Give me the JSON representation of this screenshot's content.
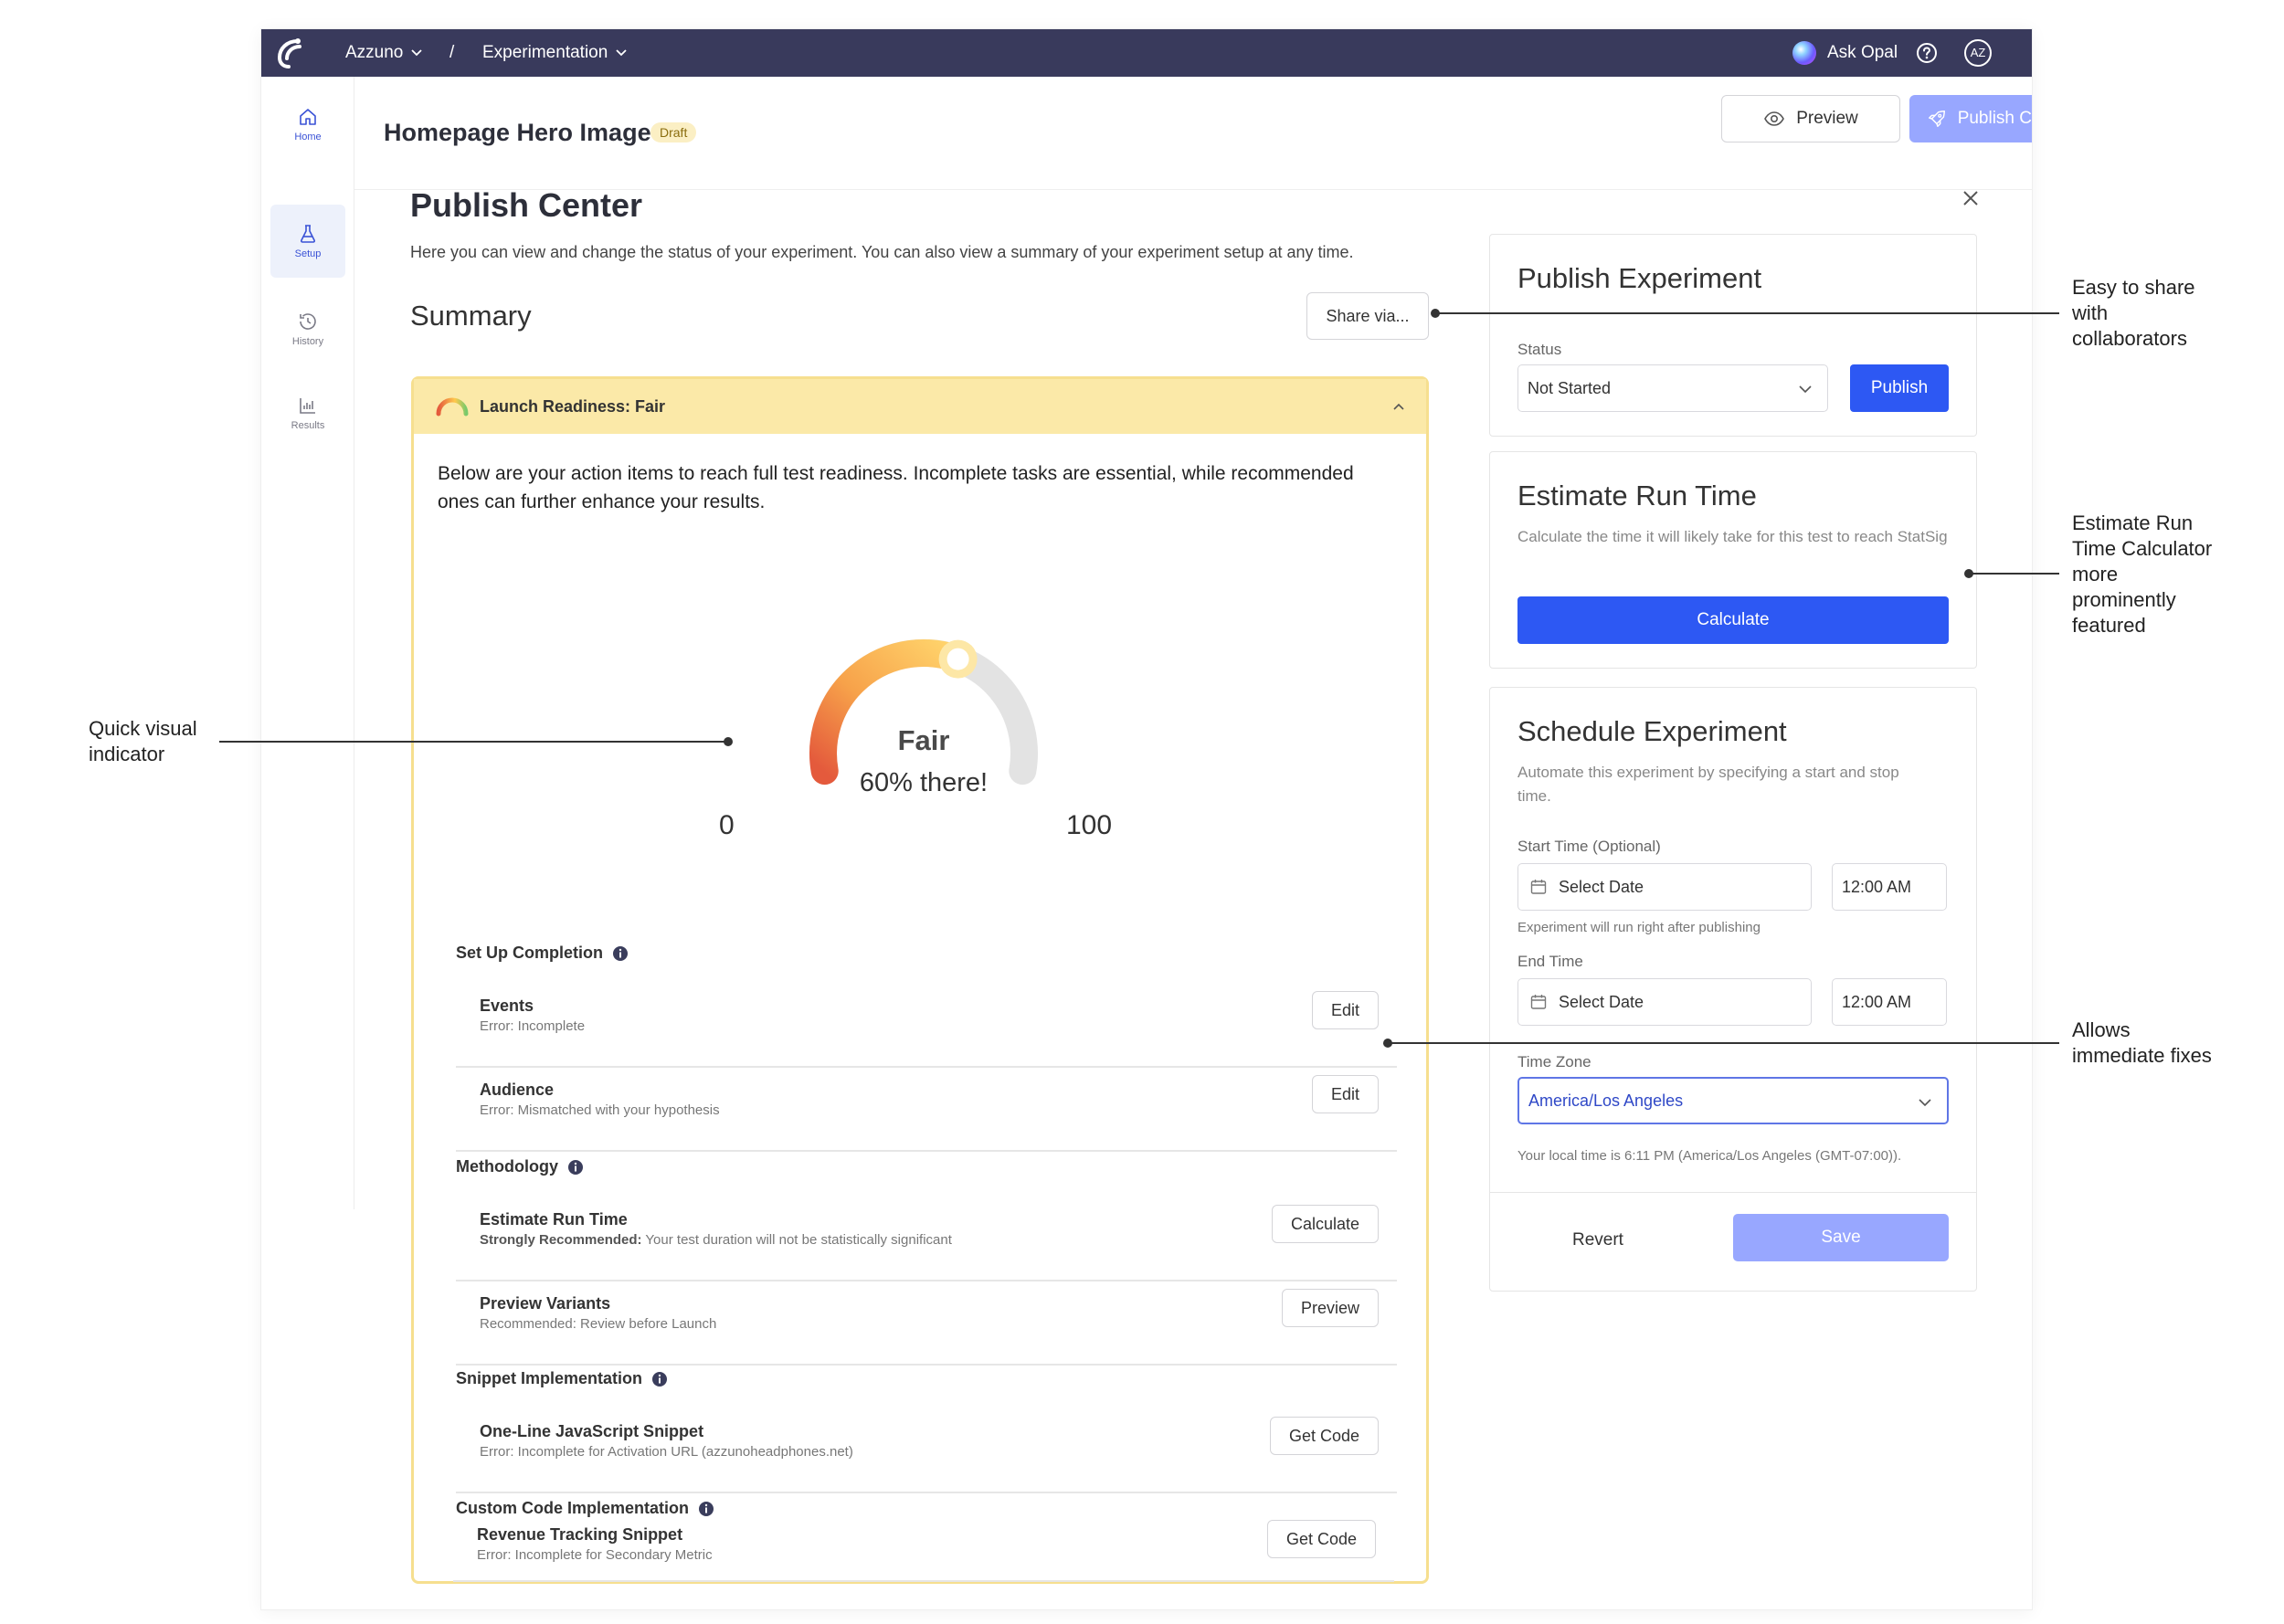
{
  "topbar": {
    "org": "Azzuno",
    "separator": "/",
    "section": "Experimentation",
    "assistant": "Ask Opal",
    "avatar_initials": "AZ"
  },
  "sidebar": {
    "items": [
      {
        "label": "Home",
        "icon": "home-icon"
      },
      {
        "label": "Setup",
        "icon": "flask-icon"
      },
      {
        "label": "History",
        "icon": "history-icon"
      },
      {
        "label": "Results",
        "icon": "bar-chart-icon"
      }
    ]
  },
  "header": {
    "title": "Homepage Hero Image",
    "badge": "Draft",
    "preview_label": "Preview",
    "publish_center_label": "Publish Center"
  },
  "publish_center": {
    "title": "Publish Center",
    "description": "Here you can view and change the status of your experiment. You can also view a summary of your experiment setup at any time.",
    "summary_title": "Summary",
    "share_label": "Share via..."
  },
  "readiness": {
    "header": "Launch Readiness: Fair",
    "intro": "Below are your action items to reach full test readiness. Incomplete tasks are essential, while recommended ones can further enhance your results.",
    "gauge": {
      "label": "Fair",
      "caption": "60% there!",
      "value": 60,
      "min_label": "0",
      "max_label": "100"
    },
    "sections": [
      {
        "title": "Set Up Completion",
        "items": [
          {
            "title": "Events",
            "sub_prefix": "",
            "sub": "Error: Incomplete",
            "action": "Edit"
          },
          {
            "title": "Audience",
            "sub_prefix": "",
            "sub": "Error: Mismatched with your hypothesis",
            "action": "Edit"
          }
        ]
      },
      {
        "title": "Methodology",
        "items": [
          {
            "title": "Estimate Run Time",
            "sub_prefix": "Strongly Recommended:",
            "sub": " Your test duration will not be statistically significant",
            "action": "Calculate"
          },
          {
            "title": "Preview Variants",
            "sub_prefix": "",
            "sub": "Recommended: Review before Launch",
            "action": "Preview"
          }
        ]
      },
      {
        "title": "Snippet Implementation",
        "items": [
          {
            "title": "One-Line JavaScript Snippet",
            "sub_prefix": "",
            "sub": "Error: Incomplete for Activation URL (azzunoheadphones.net)",
            "action": "Get Code"
          }
        ]
      },
      {
        "title": "Custom Code Implementation",
        "items": [
          {
            "title": "Revenue Tracking Snippet",
            "sub_prefix": "",
            "sub": "Error: Incomplete for Secondary Metric",
            "action": "Get Code"
          }
        ]
      }
    ]
  },
  "publish_experiment": {
    "title": "Publish Experiment",
    "status_label": "Status",
    "status_value": "Not Started",
    "publish_label": "Publish"
  },
  "estimate": {
    "title": "Estimate Run Time",
    "description": "Calculate the time it will likely take for this test to reach StatSig",
    "button": "Calculate"
  },
  "schedule": {
    "title": "Schedule Experiment",
    "description": "Automate this experiment by specifying a start and stop time.",
    "start_label": "Start Time (Optional)",
    "start_date_placeholder": "Select Date",
    "start_time": "12:00 AM",
    "start_hint": "Experiment will run right after publishing",
    "end_label": "End Time",
    "end_date_placeholder": "Select Date",
    "end_time": "12:00 AM",
    "tz_label": "Time Zone",
    "tz_value": "America/Los Angeles",
    "local_time": "Your local time is 6:11 PM (America/Los Angeles (GMT-07:00)).",
    "revert_label": "Revert",
    "save_label": "Save"
  },
  "annotations": {
    "share": [
      "Easy to share",
      "with",
      "collaborators"
    ],
    "estimate": [
      "Estimate Run",
      "Time Calculator",
      "more",
      "prominently",
      "featured"
    ],
    "gauge": [
      "Quick visual",
      "indicator"
    ],
    "fixes": [
      "Allows",
      "immediate fixes"
    ]
  },
  "colors": {
    "topbar": "#393a5c",
    "primary": "#2d58f3",
    "primary_disabled": "#98a7ff",
    "readiness_bg": "#fbe9a8",
    "readiness_border": "#f6df8f",
    "gauge_start": "#e45a3c",
    "gauge_end": "#ffd36b",
    "gauge_track": "#e3e3e3"
  }
}
